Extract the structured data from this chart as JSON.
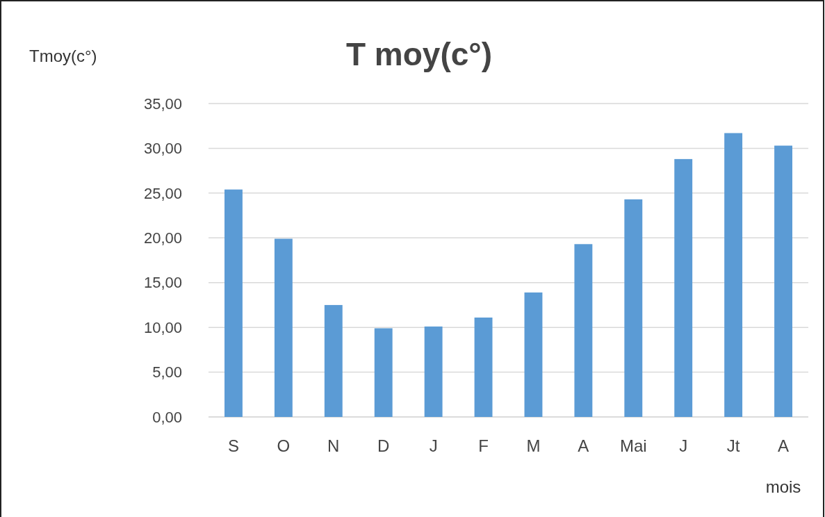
{
  "chart_data": {
    "type": "bar",
    "title": "T moy(c°)",
    "ylabel": "Tmoy(c°)",
    "xlabel": "mois",
    "categories": [
      "S",
      "O",
      "N",
      "D",
      "J",
      "F",
      "M",
      "A",
      "Mai",
      "J",
      "Jt",
      "A"
    ],
    "values": [
      25.4,
      19.9,
      12.5,
      9.9,
      10.1,
      11.1,
      13.9,
      19.3,
      24.3,
      28.8,
      31.7,
      30.3
    ],
    "color": "#5b9bd5",
    "ylim": [
      0,
      35
    ],
    "yticks": [
      {
        "value": 0,
        "label": "0,00"
      },
      {
        "value": 5,
        "label": "5,00"
      },
      {
        "value": 10,
        "label": "10,00"
      },
      {
        "value": 15,
        "label": "15,00"
      },
      {
        "value": 20,
        "label": "20,00"
      },
      {
        "value": 25,
        "label": "25,00"
      },
      {
        "value": 30,
        "label": "30,00"
      },
      {
        "value": 35,
        "label": "35,00"
      }
    ],
    "grid": "y"
  }
}
